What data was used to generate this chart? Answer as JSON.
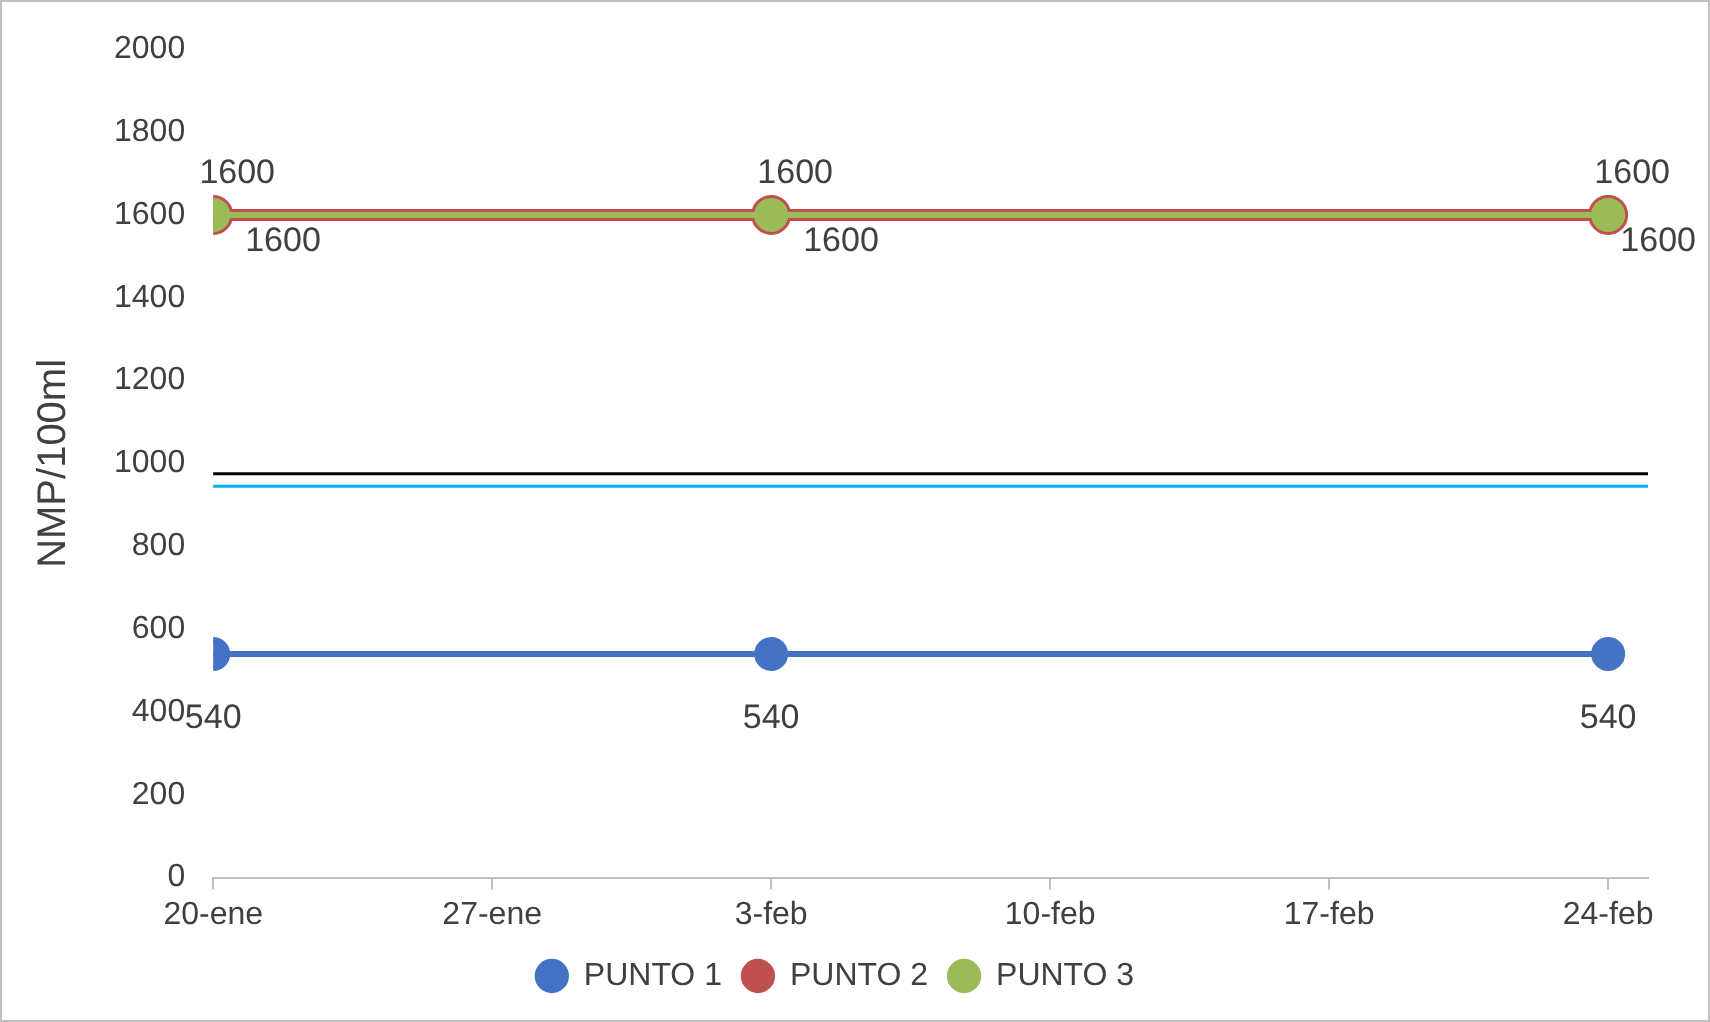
{
  "chart_data": {
    "type": "line",
    "ylabel": "NMP/100ml",
    "x": [
      "--01-20",
      "--02-03",
      "--02-24"
    ],
    "series": [
      {
        "name": "PUNTO 1",
        "color": "#4472c4",
        "values": [
          540,
          540,
          540
        ]
      },
      {
        "name": "PUNTO 2",
        "color": "#c0504d",
        "values": [
          1600,
          1600,
          1600
        ]
      },
      {
        "name": "PUNTO 3",
        "color": "#9bbb59",
        "values": [
          1600,
          1600,
          1600
        ]
      }
    ],
    "xlim": [
      "--01-20",
      "--02-25"
    ],
    "xticks": [
      {
        "value": "--01-20",
        "label": "20-ene"
      },
      {
        "value": "--01-27",
        "label": "27-ene"
      },
      {
        "value": "--02-03",
        "label": "3-feb"
      },
      {
        "value": "--02-10",
        "label": "10-feb"
      },
      {
        "value": "--02-17",
        "label": "17-feb"
      },
      {
        "value": "--02-24",
        "label": "24-feb"
      }
    ],
    "ylim": [
      0,
      2000
    ],
    "yticks": [
      0,
      200,
      400,
      600,
      800,
      1000,
      1200,
      1400,
      1600,
      1800,
      2000
    ],
    "ref_lines": [
      {
        "axis": "y",
        "value": 975,
        "color": "#000000"
      },
      {
        "axis": "y",
        "value": 945,
        "color": "#00b0f0"
      }
    ],
    "grid": false,
    "legend": "bottom",
    "marker": "circle",
    "line_style": "solid",
    "data_labels": true
  }
}
